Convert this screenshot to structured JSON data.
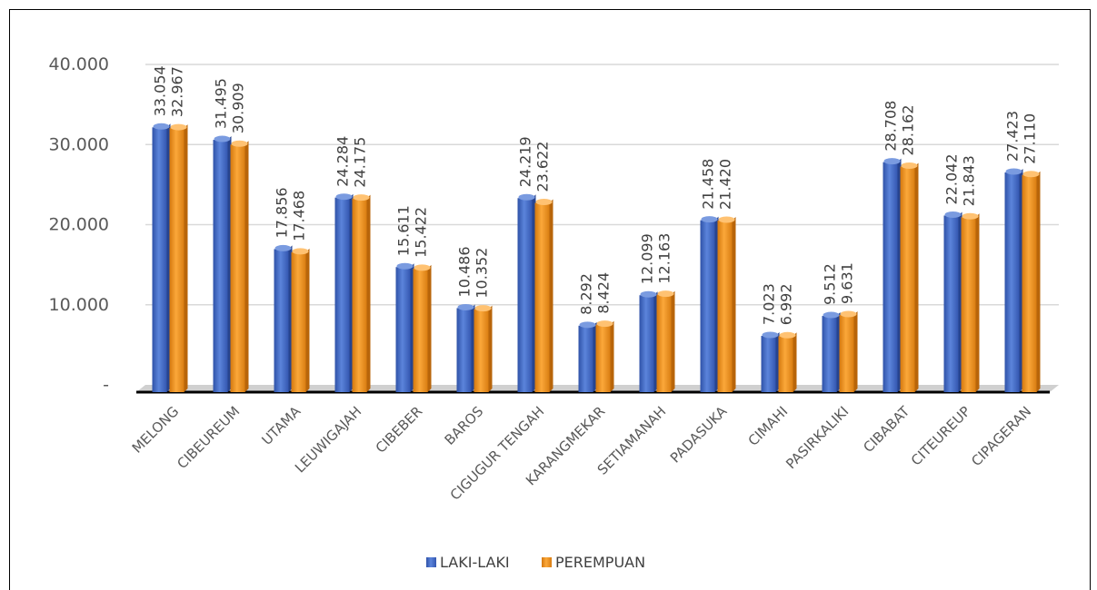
{
  "chart_data": {
    "type": "bar",
    "categories": [
      "MELONG",
      "CIBEUREUM",
      "UTAMA",
      "LEUWIGAJAH",
      "CIBEBER",
      "BAROS",
      "CIGUGUR TENGAH",
      "KARANGMEKAR",
      "SETIAMANAH",
      "PADASUKA",
      "CIMAHI",
      "PASIRKALIKI",
      "CIBABAT",
      "CITEUREUP",
      "CIPAGERAN"
    ],
    "series": [
      {
        "name": "LAKI-LAKI",
        "color": "#4472C4",
        "values": [
          33054,
          31495,
          17856,
          24284,
          15611,
          10486,
          24219,
          8292,
          12099,
          21458,
          7023,
          9512,
          28708,
          22042,
          27423
        ],
        "labels": [
          "33.054",
          "31.495",
          "17.856",
          "24.284",
          "15.611",
          "10.486",
          "24.219",
          "8.292",
          "12.099",
          "21.458",
          "7.023",
          "9.512",
          "28.708",
          "22.042",
          "27.423"
        ]
      },
      {
        "name": "PEREMPUAN",
        "color": "#F0941C",
        "values": [
          32967,
          30909,
          17468,
          24175,
          15422,
          10352,
          23622,
          8424,
          12163,
          21420,
          6992,
          9631,
          28162,
          21843,
          27110
        ],
        "labels": [
          "32.967",
          "30.909",
          "17.468",
          "24.175",
          "15.422",
          "10.352",
          "23.622",
          "8.424",
          "12.163",
          "21.420",
          "6.992",
          "9.631",
          "28.162",
          "21.843",
          "27.110"
        ]
      }
    ],
    "y_ticks": [
      {
        "value": 0,
        "label": "-"
      },
      {
        "value": 10000,
        "label": "10.000"
      },
      {
        "value": 20000,
        "label": "20.000"
      },
      {
        "value": 30000,
        "label": "30.000"
      },
      {
        "value": 40000,
        "label": "40.000"
      }
    ],
    "ylim": [
      0,
      40000
    ],
    "grid": true,
    "legend_position": "bottom"
  }
}
